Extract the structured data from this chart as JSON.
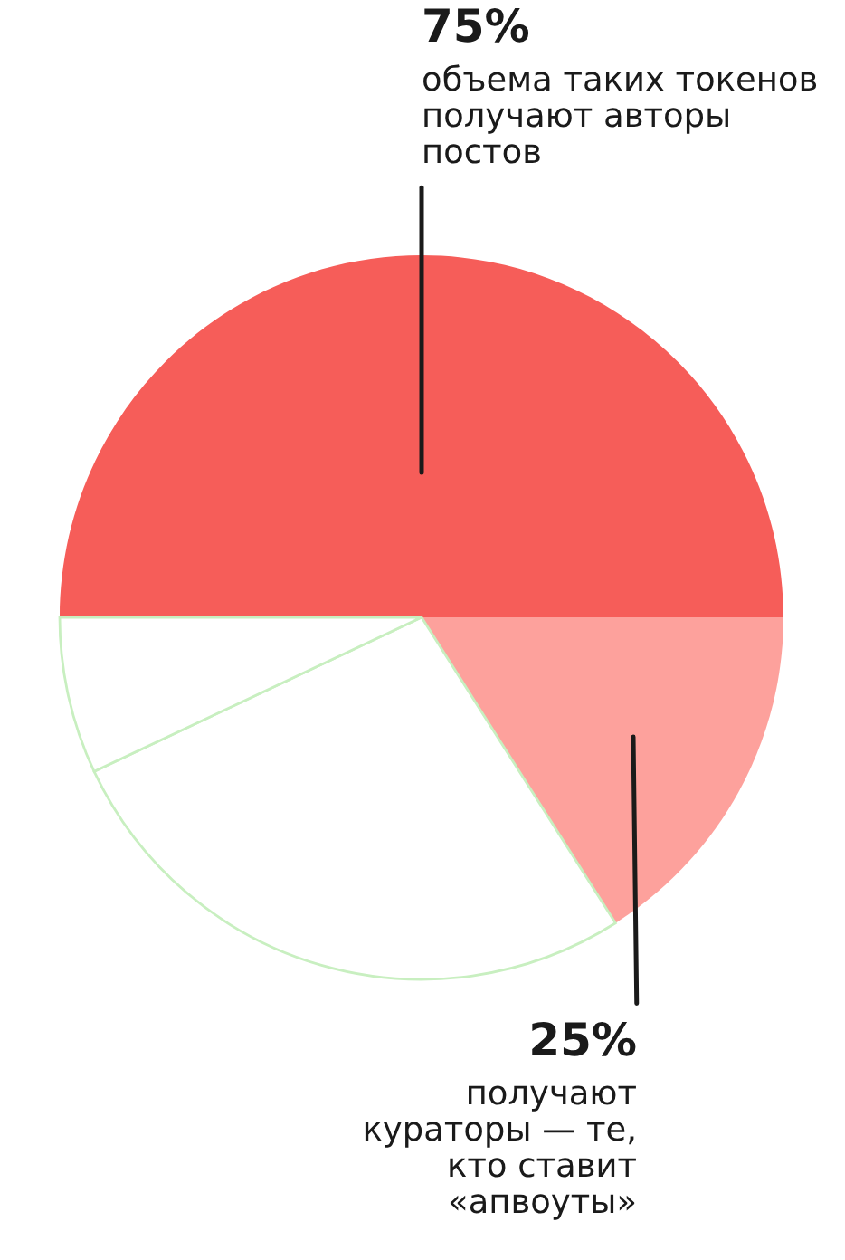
{
  "chart_data": {
    "type": "pie",
    "categories": [
      null,
      null,
      null,
      null
    ],
    "values": [
      50,
      16,
      27,
      7
    ],
    "colors": [
      "#f65d59",
      "#fda19c",
      "#ffffff",
      "#ffffff"
    ],
    "annotations": [
      {
        "text": "75%"
      },
      {
        "text": "объема таких токенов\nполучают авторы\nпостов"
      },
      {
        "text": "25%"
      },
      {
        "text": "получают\nкураторы — те,\nкто ставит\n«апвоуты»"
      }
    ]
  }
}
